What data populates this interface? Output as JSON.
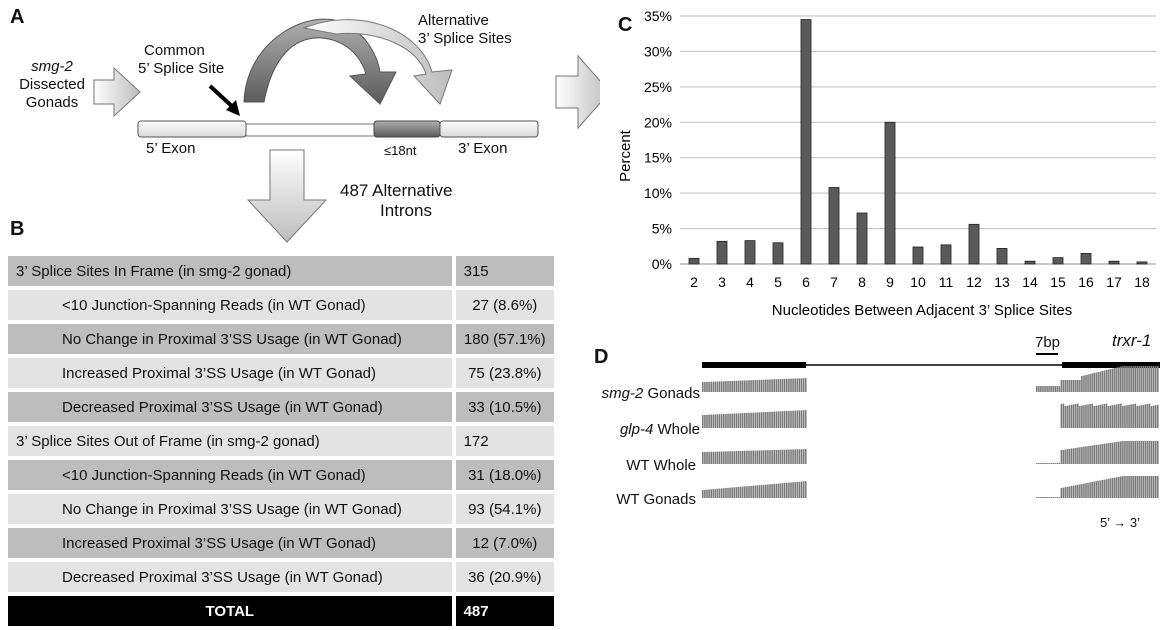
{
  "panels": {
    "a": "A",
    "b": "B",
    "c": "C",
    "d": "D"
  },
  "panel_a": {
    "input_gene": "smg-2",
    "input_label_1": "Dissected",
    "input_label_2": "Gonads",
    "common_line1": "Common",
    "common_line2": "5’ Splice Site",
    "alt_line1": "Alternative",
    "alt_line2": "3’ Splice Sites",
    "exon5": "5’ Exon",
    "exon3": "3’ Exon",
    "nt": "≤18nt",
    "introns_line1": "487 Alternative",
    "introns_line2": "Introns"
  },
  "table": {
    "rows": [
      {
        "label": "3’ Splice Sites In Frame (in smg-2 gonad)",
        "value": "315",
        "level": "main"
      },
      {
        "label": "<10 Junction-Spanning Reads (in WT Gonad)",
        "value": "27 (8.6%)",
        "level": "sub"
      },
      {
        "label": "No Change in Proximal 3’SS Usage (in WT Gonad)",
        "value": "180 (57.1%)",
        "level": "sub"
      },
      {
        "label": "Increased Proximal 3’SS Usage (in WT Gonad)",
        "value": "75 (23.8%)",
        "level": "sub"
      },
      {
        "label": "Decreased Proximal 3’SS Usage (in WT Gonad)",
        "value": "33 (10.5%)",
        "level": "sub"
      },
      {
        "label": "3’ Splice Sites Out of Frame (in smg-2 gonad)",
        "value": "172",
        "level": "main"
      },
      {
        "label": "<10 Junction-Spanning Reads (in WT Gonad)",
        "value": "31 (18.0%)",
        "level": "sub"
      },
      {
        "label": "No Change in Proximal 3’SS Usage (in WT Gonad)",
        "value": "93 (54.1%)",
        "level": "sub"
      },
      {
        "label": "Increased Proximal 3’SS Usage (in WT Gonad)",
        "value": "12 (7.0%)",
        "level": "sub"
      },
      {
        "label": "Decreased Proximal 3’SS Usage (in WT Gonad)",
        "value": "36 (20.9%)",
        "level": "sub"
      }
    ],
    "total_label": "TOTAL",
    "total_value": "487"
  },
  "chart_data": {
    "type": "bar",
    "categories": [
      "2",
      "3",
      "4",
      "5",
      "6",
      "7",
      "8",
      "9",
      "10",
      "11",
      "12",
      "13",
      "14",
      "15",
      "16",
      "17",
      "18"
    ],
    "values": [
      0.8,
      3.2,
      3.3,
      3.0,
      34.5,
      10.8,
      7.2,
      20.0,
      2.4,
      2.7,
      5.6,
      2.2,
      0.4,
      0.9,
      1.5,
      0.4,
      0.3
    ],
    "xlabel": "Nucleotides Between Adjacent 3’ Splice Sites",
    "ylabel": "Percent",
    "ylim": [
      0,
      35
    ],
    "yticks": [
      "0%",
      "5%",
      "10%",
      "15%",
      "20%",
      "25%",
      "30%",
      "35%"
    ],
    "grid": true,
    "bar_color": "#5a5a5a"
  },
  "panel_d": {
    "gene": "trxr-1",
    "scale": "7bp",
    "direction": "5’ → 3’",
    "tracks": [
      {
        "gene": "smg-2",
        "label": " Gonads"
      },
      {
        "gene": "glp-4",
        "label": " Whole"
      },
      {
        "gene": "",
        "label": "WT Whole"
      },
      {
        "gene": "",
        "label": "WT Gonads"
      }
    ]
  }
}
